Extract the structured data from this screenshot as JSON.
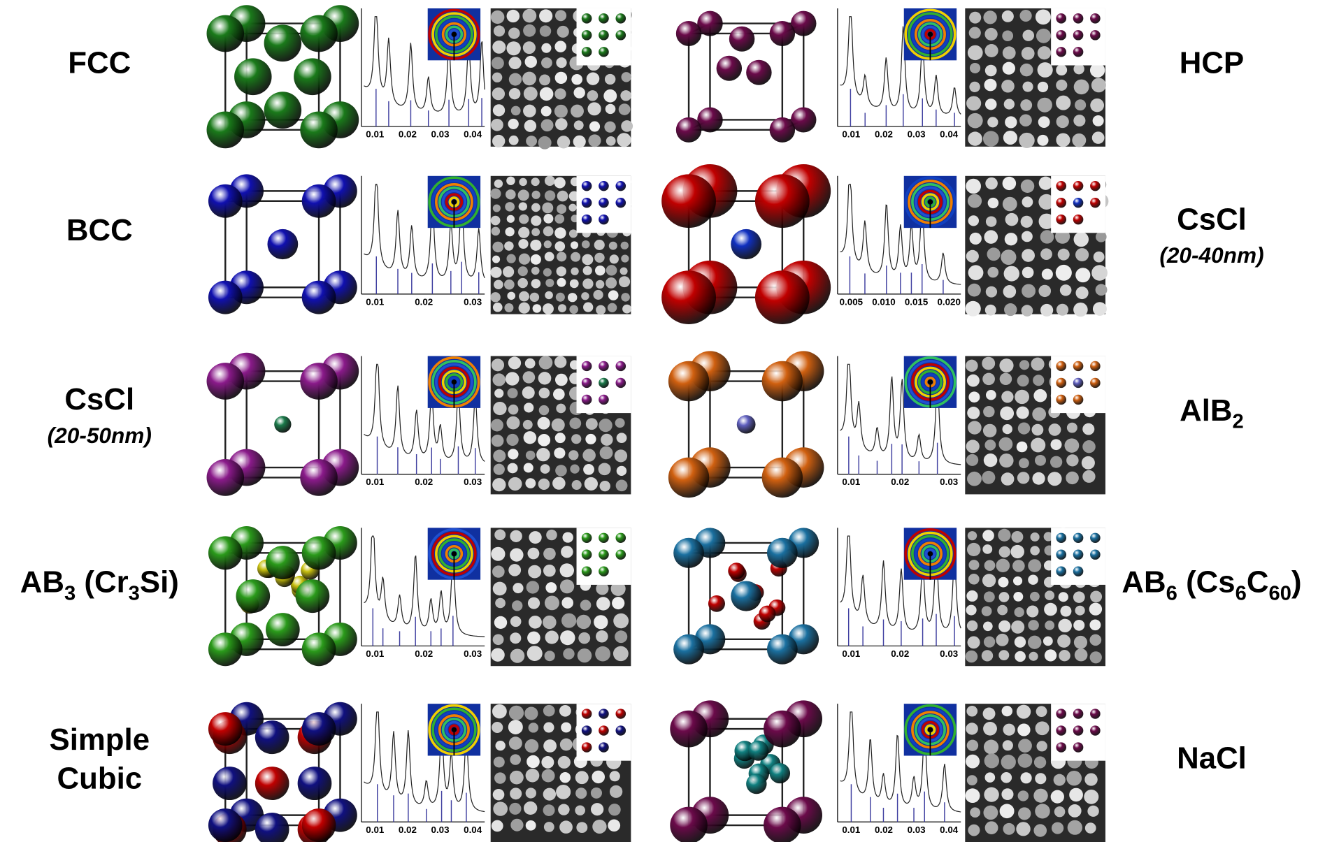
{
  "panels": [
    {
      "label": [
        [
          {
            "text": "FCC"
          }
        ]
      ],
      "ticks": [
        "0.01",
        "0.02",
        "0.03",
        "0.04"
      ]
    },
    {
      "label": [
        [
          {
            "text": "HCP"
          }
        ]
      ],
      "ticks": [
        "0.01",
        "0.02",
        "0.03",
        "0.04"
      ]
    },
    {
      "label": [
        [
          {
            "text": "BCC"
          }
        ]
      ],
      "ticks": [
        "0.01",
        "0.02",
        "0.03"
      ]
    },
    {
      "label": [
        [
          {
            "text": "CsCl"
          }
        ]
      ],
      "sublabel": "(20-40nm)",
      "ticks": [
        "0.005",
        "0.010",
        "0.015",
        "0.020"
      ]
    },
    {
      "label": [
        [
          {
            "text": "CsCl"
          }
        ]
      ],
      "sublabel": "(20-50nm)",
      "ticks": [
        "0.01",
        "0.02",
        "0.03"
      ]
    },
    {
      "label": [
        [
          {
            "text": "AlB"
          },
          {
            "text": "2",
            "sub": true
          }
        ]
      ],
      "ticks": [
        "0.01",
        "0.02",
        "0.03"
      ]
    },
    {
      "label": [
        [
          {
            "text": "AB"
          },
          {
            "text": "3",
            "sub": true
          },
          {
            "text": " (Cr"
          },
          {
            "text": "3",
            "sub": true
          },
          {
            "text": "Si)"
          }
        ]
      ],
      "ticks": [
        "0.01",
        "0.02",
        "0.03"
      ]
    },
    {
      "label": [
        [
          {
            "text": "AB"
          },
          {
            "text": "6",
            "sub": true
          },
          {
            "text": " (Cs"
          },
          {
            "text": "6",
            "sub": true
          },
          {
            "text": "C"
          },
          {
            "text": "60",
            "sub": true
          },
          {
            "text": ")"
          }
        ]
      ],
      "ticks": [
        "0.01",
        "0.02",
        "0.03"
      ]
    },
    {
      "label": [
        [
          {
            "text": "Simple"
          }
        ],
        [
          {
            "text": "Cubic"
          }
        ]
      ],
      "ticks": [
        "0.01",
        "0.02",
        "0.03",
        "0.04"
      ]
    },
    {
      "label": [
        [
          {
            "text": "NaCl"
          }
        ]
      ],
      "ticks": [
        "0.01",
        "0.02",
        "0.03",
        "0.04"
      ]
    }
  ]
}
